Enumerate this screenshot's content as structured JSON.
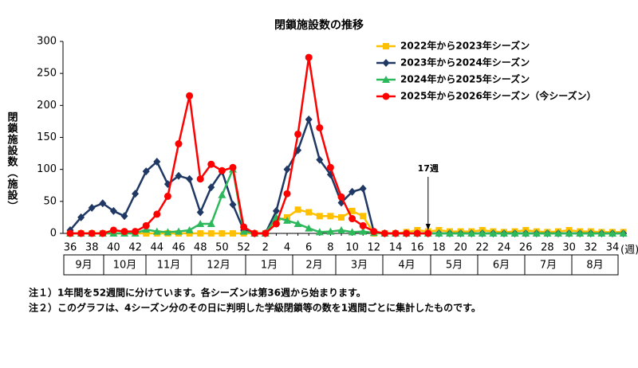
{
  "chart_data": {
    "type": "line",
    "title": "閉鎖施設数の推移",
    "y_label": "閉鎖施設数（施設）",
    "x_label": "(週)",
    "categories": [
      "36",
      null,
      "38",
      null,
      "40",
      null,
      "42",
      null,
      "44",
      null,
      "46",
      null,
      "48",
      null,
      "50",
      null,
      "52",
      null,
      "2",
      null,
      "4",
      null,
      "6",
      null,
      "8",
      null,
      "10",
      null,
      "12",
      null,
      "14",
      null,
      "16",
      null,
      "18",
      null,
      "20",
      null,
      "22",
      null,
      "24",
      null,
      "26",
      null,
      "28",
      null,
      "30",
      null,
      "32",
      null,
      "34",
      null
    ],
    "months": [
      "9月",
      "10月",
      "11月",
      "12月",
      "1月",
      "2月",
      "3月",
      "4月",
      "5月",
      "6月",
      "7月",
      "8月"
    ],
    "ylim": [
      0,
      300
    ],
    "yticks": [
      0,
      50,
      100,
      150,
      200,
      250,
      300
    ],
    "series": [
      {
        "name": "2022年から2023年シーズン",
        "color": "#ffc000",
        "marker": "square",
        "values": [
          0,
          0,
          0,
          0,
          0,
          0,
          0,
          0,
          0,
          0,
          0,
          0,
          0,
          0,
          0,
          0,
          0,
          0,
          0,
          20,
          25,
          37,
          33,
          27,
          27,
          25,
          35,
          27,
          0,
          0,
          0,
          2,
          5,
          3,
          5,
          3,
          3,
          3,
          5,
          3,
          2,
          3,
          5,
          3,
          2,
          3,
          5,
          3,
          3,
          2,
          2,
          2
        ]
      },
      {
        "name": "2023年から2024年シーズン",
        "color": "#1f3864",
        "marker": "diamond",
        "values": [
          5,
          25,
          40,
          47,
          35,
          27,
          62,
          97,
          112,
          77,
          90,
          85,
          33,
          72,
          97,
          45,
          5,
          0,
          0,
          35,
          100,
          130,
          178,
          115,
          92,
          48,
          65,
          70,
          2,
          0,
          0,
          0,
          0,
          0,
          0,
          0,
          0,
          0,
          0,
          0,
          0,
          0,
          0,
          0,
          0,
          0,
          0,
          0,
          0,
          0,
          0,
          0
        ]
      },
      {
        "name": "2024年から2025年シーズン",
        "color": "#2eb85c",
        "marker": "triangle",
        "values": [
          0,
          0,
          0,
          0,
          0,
          0,
          0,
          6,
          3,
          2,
          3,
          5,
          15,
          15,
          60,
          100,
          3,
          0,
          0,
          25,
          20,
          15,
          8,
          2,
          3,
          5,
          2,
          3,
          1,
          0,
          0,
          0,
          0,
          0,
          0,
          0,
          0,
          0,
          0,
          0,
          0,
          0,
          0,
          0,
          0,
          0,
          0,
          0,
          0,
          0,
          0,
          0
        ]
      },
      {
        "name": "2025年から2026年シーズン（今シーズン）",
        "color": "#ff0000",
        "marker": "circle",
        "values": [
          0,
          0,
          0,
          0,
          5,
          3,
          3,
          12,
          30,
          58,
          140,
          215,
          85,
          108,
          98,
          103,
          10,
          0,
          0,
          15,
          62,
          155,
          275,
          165,
          103,
          57,
          23,
          12,
          3,
          0,
          0,
          0,
          0,
          0,
          null,
          null,
          null,
          null,
          null,
          null,
          null,
          null,
          null,
          null,
          null,
          null,
          null,
          null,
          null,
          null,
          null,
          null
        ]
      }
    ],
    "annotation": {
      "text": "17週",
      "index": 33
    },
    "notes": [
      "注１）1年間を52週間に分けています。各シーズンは第36週から始まります。",
      "注２）このグラフは、4シーズン分のその日に判明した学級閉鎖等の数を1週間ごとに集計したものです。"
    ]
  }
}
